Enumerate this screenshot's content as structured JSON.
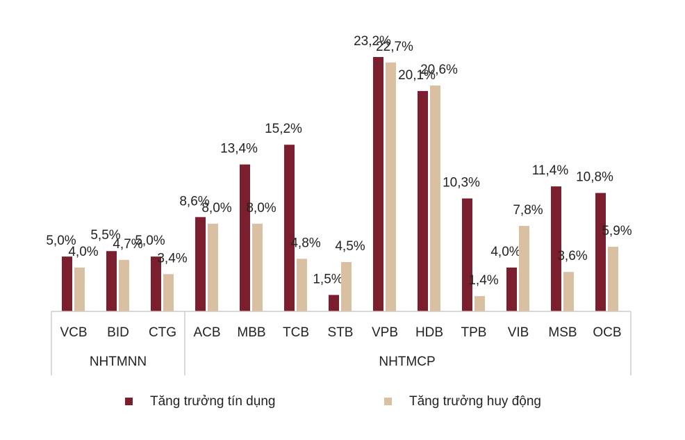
{
  "chart_data": {
    "type": "bar",
    "groups": [
      {
        "name": "NHTMNN",
        "categories": [
          "VCB",
          "BID",
          "CTG"
        ]
      },
      {
        "name": "NHTMCP",
        "categories": [
          "ACB",
          "MBB",
          "TCB",
          "STB",
          "VPB",
          "HDB",
          "TPB",
          "VIB",
          "MSB",
          "OCB"
        ]
      }
    ],
    "series": [
      {
        "name": "Tăng trưởng tín dụng",
        "color": "#7b1f2e",
        "values": [
          5.0,
          5.5,
          5.0,
          8.6,
          13.4,
          15.2,
          1.5,
          23.2,
          20.1,
          10.3,
          4.0,
          11.4,
          10.8
        ],
        "value_labels": [
          "5,0%",
          "5,5%",
          "5,0%",
          "8,6%",
          "13,4%",
          "15,2%",
          "1,5%",
          "23,2%",
          "20,1%",
          "10,3%",
          "4,0%",
          "11,4%",
          "10,8%"
        ]
      },
      {
        "name": "Tăng trưởng huy động",
        "color": "#d9c0a3",
        "values": [
          4.0,
          4.7,
          3.4,
          8.0,
          8.0,
          4.8,
          4.5,
          22.7,
          20.6,
          1.4,
          7.8,
          3.6,
          5.9
        ],
        "value_labels": [
          "4,0%",
          "4,7%",
          "3,4%",
          "8,0%",
          "8,0%",
          "4,8%",
          "4,5%",
          "22,7%",
          "20,6%",
          "1,4%",
          "7,8%",
          "3,6%",
          "5,9%"
        ]
      }
    ],
    "legend": "bottom"
  }
}
